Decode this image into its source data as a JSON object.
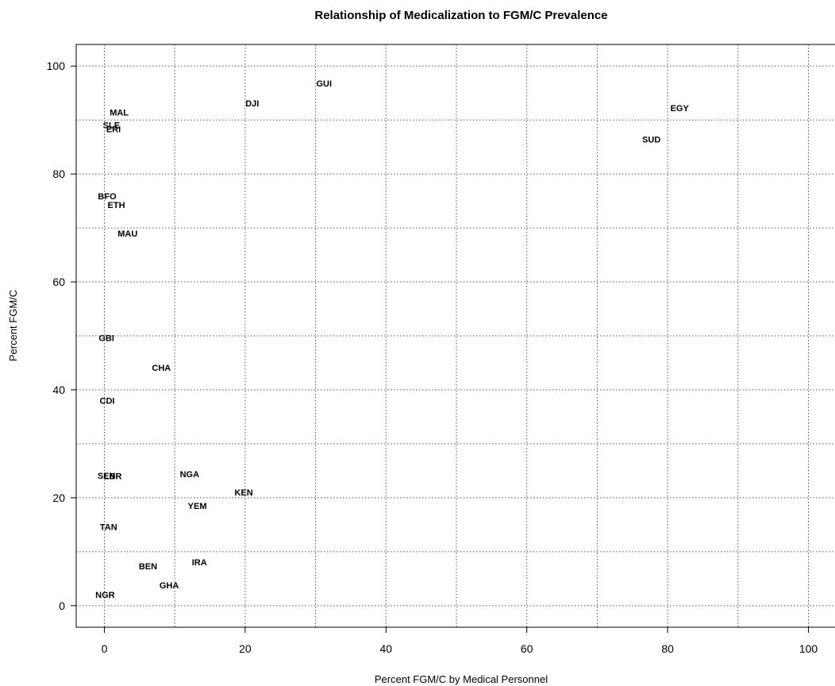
{
  "chart_data": {
    "type": "scatter",
    "title": "Relationship of Medicalization to FGM/C Prevalence",
    "xlabel": "Percent FGM/C by Medical Personnel",
    "ylabel": "Percent FGM/C",
    "xlim": [
      -4,
      104
    ],
    "ylim": [
      -4,
      104
    ],
    "xticks": [
      0,
      20,
      40,
      60,
      80,
      100
    ],
    "yticks": [
      0,
      20,
      40,
      60,
      80,
      100
    ],
    "xgrid": [
      10,
      30,
      50,
      70,
      90
    ],
    "ygrid": [
      10,
      30,
      50,
      70,
      90
    ],
    "grid": true,
    "points": [
      {
        "label": "GUI",
        "x": 31.2,
        "y": 96.8
      },
      {
        "label": "DJI",
        "x": 21.0,
        "y": 93.1
      },
      {
        "label": "EGY",
        "x": 81.7,
        "y": 92.2
      },
      {
        "label": "SUD",
        "x": 77.7,
        "y": 86.4
      },
      {
        "label": "MAL",
        "x": 2.1,
        "y": 91.4
      },
      {
        "label": "SLE",
        "x": 1.0,
        "y": 89.1
      },
      {
        "label": "ERI",
        "x": 1.3,
        "y": 88.3
      },
      {
        "label": "BFO",
        "x": 0.4,
        "y": 75.9
      },
      {
        "label": "ETH",
        "x": 1.7,
        "y": 74.3
      },
      {
        "label": "MAU",
        "x": 3.3,
        "y": 69.0
      },
      {
        "label": "GBI",
        "x": 0.3,
        "y": 49.6
      },
      {
        "label": "CHA",
        "x": 8.1,
        "y": 44.1
      },
      {
        "label": "CDI",
        "x": 0.4,
        "y": 38.0
      },
      {
        "label": "SEN",
        "x": 0.3,
        "y": 24.1
      },
      {
        "label": "LBR",
        "x": 1.2,
        "y": 24.0
      },
      {
        "label": "NGA",
        "x": 12.1,
        "y": 24.4
      },
      {
        "label": "KEN",
        "x": 19.8,
        "y": 21.0
      },
      {
        "label": "YEM",
        "x": 13.2,
        "y": 18.5
      },
      {
        "label": "TAN",
        "x": 0.6,
        "y": 14.6
      },
      {
        "label": "IRA",
        "x": 13.5,
        "y": 8.1
      },
      {
        "label": "BEN",
        "x": 6.2,
        "y": 7.3
      },
      {
        "label": "GHA",
        "x": 9.2,
        "y": 3.8
      },
      {
        "label": "NGR",
        "x": 0.1,
        "y": 2.0
      }
    ]
  }
}
